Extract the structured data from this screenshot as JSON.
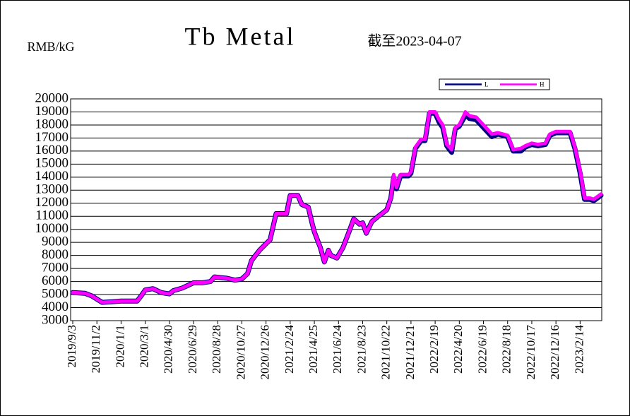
{
  "chart_data": {
    "type": "line",
    "title": "Tb Metal",
    "subtitle": "截至2023-04-07",
    "y_label": "RMB/kG",
    "x": [
      "2019/9/3",
      "2019/10/3",
      "2019/10/20",
      "2019/11/2",
      "2019/11/15",
      "2019/12/10",
      "2020/1/1",
      "2020/2/10",
      "2020/2/20",
      "2020/3/1",
      "2020/3/20",
      "2020/4/10",
      "2020/4/30",
      "2020/5/10",
      "2020/6/1",
      "2020/6/29",
      "2020/7/20",
      "2020/8/10",
      "2020/8/20",
      "2020/9/20",
      "2020/10/10",
      "2020/10/27",
      "2020/11/10",
      "2020/11/20",
      "2020/12/10",
      "2020/12/26",
      "2021/1/5",
      "2021/1/20",
      "2021/2/15",
      "2021/2/24",
      "2021/3/15",
      "2021/3/25",
      "2021/4/10",
      "2021/4/20",
      "2021/4/25",
      "2021/5/10",
      "2021/5/20",
      "2021/5/30",
      "2021/6/5",
      "2021/6/20",
      "2021/7/5",
      "2021/7/20",
      "2021/8/1",
      "2021/8/15",
      "2021/8/23",
      "2021/9/1",
      "2021/9/15",
      "2021/10/1",
      "2021/10/22",
      "2021/11/1",
      "2021/11/8",
      "2021/11/15",
      "2021/11/25",
      "2021/12/15",
      "2021/12/21",
      "2022/1/1",
      "2022/1/15",
      "2022/1/25",
      "2022/2/5",
      "2022/2/19",
      "2022/3/1",
      "2022/3/10",
      "2022/3/20",
      "2022/4/1",
      "2022/4/10",
      "2022/4/20",
      "2022/5/1",
      "2022/5/5",
      "2022/5/15",
      "2022/6/1",
      "2022/6/19",
      "2022/7/10",
      "2022/7/25",
      "2022/8/18",
      "2022/9/1",
      "2022/9/20",
      "2022/10/1",
      "2022/10/17",
      "2022/11/1",
      "2022/11/20",
      "2022/12/1",
      "2022/12/16",
      "2023/1/10",
      "2023/1/20",
      "2023/2/1",
      "2023/2/14",
      "2023/2/25",
      "2023/3/10",
      "2023/3/20",
      "2023/4/7"
    ],
    "series": [
      {
        "name": "L",
        "color": "#000080",
        "values": [
          5150,
          5100,
          4900,
          4650,
          4400,
          4450,
          4500,
          4500,
          4900,
          5350,
          5450,
          5150,
          5050,
          5300,
          5500,
          5900,
          5900,
          6000,
          6350,
          6250,
          6100,
          6200,
          6600,
          7600,
          8400,
          8900,
          9200,
          11200,
          11200,
          12600,
          12600,
          11900,
          11700,
          10400,
          9800,
          8600,
          7500,
          8400,
          8000,
          7800,
          8600,
          9800,
          10800,
          10400,
          10500,
          9700,
          10600,
          11000,
          11500,
          12400,
          14000,
          13100,
          14100,
          14100,
          14300,
          16200,
          16800,
          16800,
          18900,
          18900,
          18200,
          17800,
          16400,
          15900,
          17700,
          17900,
          18500,
          18800,
          18500,
          18400,
          17800,
          17100,
          17300,
          17100,
          16000,
          16000,
          16300,
          16500,
          16400,
          16500,
          17200,
          17400,
          17400,
          17400,
          16200,
          14300,
          12300,
          12300,
          12200,
          12600
        ]
      },
      {
        "name": "H",
        "color": "#ff00ff",
        "values": [
          5150,
          5100,
          4900,
          4650,
          4400,
          4450,
          4500,
          4500,
          4900,
          5350,
          5450,
          5150,
          5050,
          5300,
          5500,
          5900,
          5900,
          6000,
          6350,
          6250,
          6100,
          6200,
          6600,
          7600,
          8400,
          8900,
          9200,
          11200,
          11200,
          12600,
          12600,
          11900,
          11700,
          10400,
          9800,
          8600,
          7500,
          8400,
          8000,
          7800,
          8600,
          9800,
          10800,
          10400,
          10500,
          9700,
          10600,
          11000,
          11500,
          12400,
          14200,
          13200,
          14200,
          14200,
          14400,
          16300,
          16900,
          16900,
          19000,
          19000,
          18400,
          18000,
          16500,
          16100,
          17800,
          18000,
          18700,
          19000,
          18700,
          18600,
          18000,
          17300,
          17400,
          17200,
          16100,
          16200,
          16400,
          16600,
          16500,
          16600,
          17300,
          17500,
          17500,
          17500,
          16300,
          14500,
          12400,
          12400,
          12300,
          12700
        ]
      }
    ],
    "xlim": [
      "2019/9/3",
      "2023/4/7"
    ],
    "xticks": [
      "2019/9/3",
      "2019/11/2",
      "2020/1/1",
      "2020/3/1",
      "2020/4/30",
      "2020/6/29",
      "2020/8/28",
      "2020/10/27",
      "2020/12/26",
      "2021/2/24",
      "2021/4/25",
      "2021/6/24",
      "2021/8/23",
      "2021/10/22",
      "2021/12/21",
      "2022/2/19",
      "2022/4/20",
      "2022/6/19",
      "2022/8/18",
      "2022/10/17",
      "2022/12/16",
      "2023/2/14"
    ],
    "ylim": [
      3000,
      20000
    ],
    "yticks": [
      3000,
      4000,
      5000,
      6000,
      7000,
      8000,
      9000,
      10000,
      11000,
      12000,
      13000,
      14000,
      15000,
      16000,
      17000,
      18000,
      19000,
      20000
    ],
    "grid": true,
    "legend": "top-right"
  }
}
